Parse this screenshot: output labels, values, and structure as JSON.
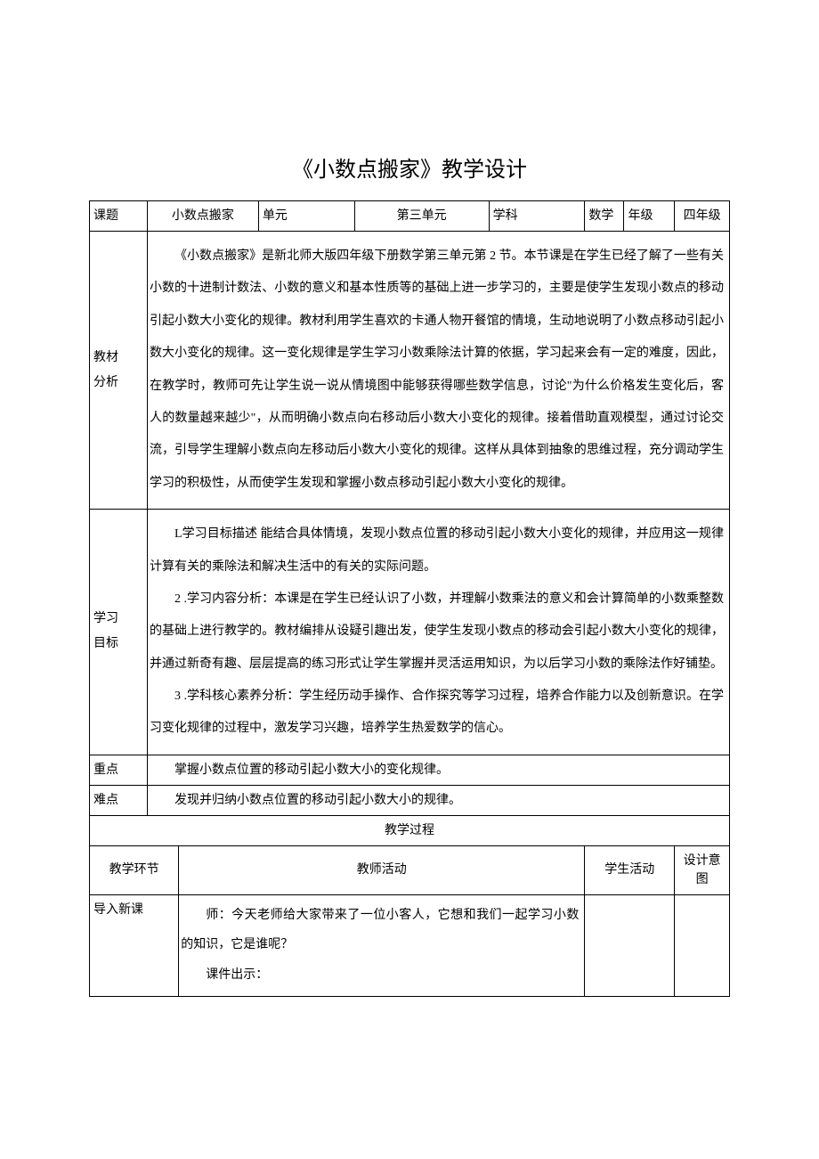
{
  "title": "《小数点搬家》教学设计",
  "header": {
    "topic_label": "课题",
    "topic_value": "小数点搬家",
    "unit_label": "单元",
    "unit_value": "第三单元",
    "subject_label": "学科",
    "subject_value": "数学",
    "grade_label": "年级",
    "grade_value": "四年级"
  },
  "analysis": {
    "label": "教材分析",
    "p1": "《小数点搬家》是新北师大版四年级下册数学第三单元第 2 节。本节课是在学生已经了解了一些有关小数的十进制计数法、小数的意义和基本性质等的基础上进一步学习的，主要是使学生发现小数点的移动引起小数大小变化的规律。教材利用学生喜欢的卡通人物开餐馆的情境，生动地说明了小数点移动引起小数大小变化的规律。这一变化规律是学生学习小数乘除法计算的依据，学习起来会有一定的难度，因此，在教学时，教师可先让学生说一说从情境图中能够获得哪些数学信息，讨论\"为什么价格发生变化后，客人的数量越来越少\"，从而明确小数点向右移动后小数大小变化的规律。接着借助直观模型，通过讨论交流，引导学生理解小数点向左移动后小数大小变化的规律。这样从具体到抽象的思维过程，充分调动学生学习的积极性，从而使学生发现和掌握小数点移动引起小数大小变化的规律。"
  },
  "goals": {
    "label": "学习目标",
    "p1": "L学习目标描述 能结合具体情境，发现小数点位置的移动引起小数大小变化的规律，并应用这一规律计算有关的乘除法和解决生活中的有关的实际问题。",
    "p2": "2 .学习内容分析：本课是在学生已经认识了小数，并理解小数乘法的意义和会计算简单的小数乘整数的基础上进行教学的。教材编排从设疑引趣出发，使学生发现小数点的移动会引起小数大小变化的规律，并通过新奇有趣、层层提高的练习形式让学生掌握并灵活运用知识，为以后学习小数的乘除法作好铺垫。",
    "p3": "3 .学科核心素养分析：学生经历动手操作、合作探究等学习过程，培养合作能力以及创新意识。在学习变化规律的过程中，激发学习兴趣，培养学生热爱数学的信心。"
  },
  "keypoint": {
    "label": "重点",
    "text": "掌握小数点位置的移动引起小数大小的变化规律。"
  },
  "difficulty": {
    "label": "难点",
    "text": "发现并归纳小数点位置的移动引起小数大小的规律。"
  },
  "process_label": "教学过程",
  "process_header": {
    "segment": "教学环节",
    "teacher": "教师活动",
    "student": "学生活动",
    "intent": "设计意图"
  },
  "intro": {
    "segment": "导入新课",
    "p1": "师：今天老师给大家带来了一位小客人，它想和我们一起学习小数的知识，它是谁呢？",
    "p2": "课件出示："
  }
}
